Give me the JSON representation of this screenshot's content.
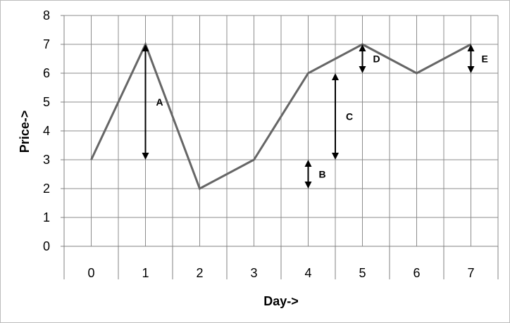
{
  "chart_data": {
    "type": "line",
    "xlabel": "Day->",
    "ylabel": "Price->",
    "x": [
      0,
      1,
      2,
      3,
      4,
      5,
      6,
      7
    ],
    "series": [
      {
        "values": [
          3,
          7,
          2,
          3,
          6,
          7,
          6,
          7
        ],
        "color": "#666666"
      }
    ],
    "xlim": [
      -0.5,
      7.5
    ],
    "ylim": [
      0,
      8
    ],
    "yticks": [
      0,
      1,
      2,
      3,
      4,
      5,
      6,
      7,
      8
    ],
    "xticks": [
      0,
      1,
      2,
      3,
      4,
      5,
      6,
      7
    ],
    "grid": true,
    "annotations": [
      {
        "label": "A",
        "x": 1,
        "y1": 3,
        "y2": 7
      },
      {
        "label": "B",
        "x": 4,
        "y1": 2,
        "y2": 3
      },
      {
        "label": "C",
        "x": 4.5,
        "y1": 3,
        "y2": 6
      },
      {
        "label": "D",
        "x": 5,
        "y1": 6,
        "y2": 7
      },
      {
        "label": "E",
        "x": 7,
        "y1": 6,
        "y2": 7
      }
    ]
  }
}
